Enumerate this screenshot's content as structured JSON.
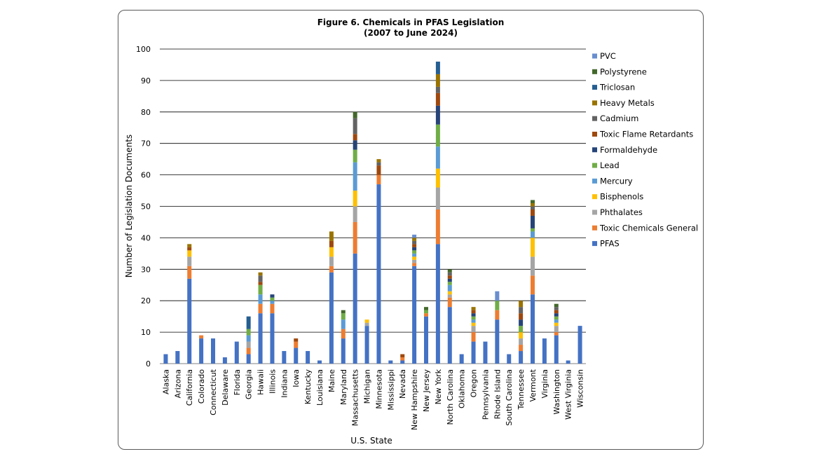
{
  "chart_data": {
    "type": "bar",
    "stacked": true,
    "title": "Figure 6. Chemicals in PFAS Legislation",
    "subtitle": "(2007 to June 2024)",
    "xlabel": "U.S. State",
    "ylabel": "Number of Legislation Documents",
    "ylim": [
      0,
      100
    ],
    "yticks": [
      0,
      10,
      20,
      30,
      40,
      50,
      60,
      70,
      80,
      90,
      100
    ],
    "grid": true,
    "legend_position": "right",
    "categories": [
      "Alaska",
      "Arizona",
      "California",
      "Colorado",
      "Connecticut",
      "Delaware",
      "Florida",
      "Georgia",
      "Hawaii",
      "Illinois",
      "Indiana",
      "Iowa",
      "Kentucky",
      "Louisiana",
      "Maine",
      "Maryland",
      "Massachusetts",
      "Michigan",
      "Minnesota",
      "Mississippi",
      "Nevada",
      "New Hampshire",
      "New Jersey",
      "New York",
      "North Carolina",
      "Oklahoma",
      "Oregon",
      "Pennsylvania",
      "Rhode Island",
      "South Carolina",
      "Tennessee",
      "Vermont",
      "Virginia",
      "Washington",
      "West Virginia",
      "Wisconsin"
    ],
    "series": [
      {
        "name": "PFAS",
        "color": "#4472C4",
        "values": [
          3,
          4,
          27,
          8,
          8,
          2,
          7,
          3,
          16,
          16,
          4,
          5,
          4,
          1,
          29,
          8,
          35,
          12,
          57,
          1,
          1,
          31,
          15,
          38,
          18,
          3,
          7,
          7,
          14,
          3,
          4,
          22,
          8,
          9,
          1,
          12
        ]
      },
      {
        "name": "Toxic Chemicals General",
        "color": "#ED7D31",
        "values": [
          0,
          0,
          4,
          1,
          0,
          0,
          0,
          2,
          3,
          3,
          0,
          2,
          0,
          0,
          2,
          3,
          10,
          0,
          3,
          0,
          1,
          1,
          1,
          11,
          3,
          0,
          3,
          0,
          3,
          0,
          2,
          6,
          0,
          1,
          0,
          0
        ]
      },
      {
        "name": "Phthalates",
        "color": "#A5A5A5",
        "values": [
          0,
          0,
          3,
          0,
          0,
          0,
          0,
          2,
          0,
          0,
          0,
          0,
          0,
          0,
          3,
          0,
          5,
          1,
          0,
          0,
          0,
          1,
          0,
          7,
          1,
          0,
          2,
          0,
          0,
          0,
          2,
          6,
          0,
          2,
          0,
          0
        ]
      },
      {
        "name": "Bisphenols",
        "color": "#FFC000",
        "values": [
          0,
          0,
          2,
          0,
          0,
          0,
          0,
          0,
          0,
          0,
          0,
          0,
          0,
          0,
          3,
          0,
          5,
          1,
          0,
          0,
          0,
          1,
          0,
          6,
          1,
          0,
          1,
          0,
          0,
          0,
          2,
          6,
          0,
          1,
          0,
          0
        ]
      },
      {
        "name": "Mercury",
        "color": "#5B9BD5",
        "values": [
          0,
          0,
          0,
          0,
          0,
          0,
          0,
          2,
          3,
          1,
          0,
          0,
          0,
          0,
          0,
          3,
          9,
          0,
          0,
          0,
          0,
          1,
          0,
          7,
          2,
          0,
          1,
          0,
          0,
          0,
          0,
          2,
          0,
          1,
          0,
          0
        ]
      },
      {
        "name": "Lead",
        "color": "#70AD47",
        "values": [
          0,
          0,
          0,
          0,
          0,
          0,
          0,
          2,
          3,
          1,
          0,
          0,
          0,
          0,
          0,
          2,
          4,
          0,
          0,
          0,
          0,
          1,
          1,
          7,
          1,
          0,
          1,
          0,
          3,
          0,
          2,
          1,
          0,
          1,
          0,
          0
        ]
      },
      {
        "name": "Formaldehyde",
        "color": "#264478",
        "values": [
          0,
          0,
          0,
          0,
          0,
          0,
          0,
          0,
          0,
          1,
          0,
          0,
          0,
          0,
          0,
          0,
          3,
          0,
          0,
          0,
          0,
          1,
          0,
          6,
          1,
          0,
          1,
          0,
          0,
          0,
          2,
          4,
          0,
          1,
          0,
          0
        ]
      },
      {
        "name": "Toxic Flame Retardants",
        "color": "#9E480E",
        "values": [
          0,
          0,
          1,
          0,
          0,
          0,
          0,
          0,
          1,
          0,
          0,
          1,
          0,
          0,
          2,
          0,
          2,
          0,
          3,
          0,
          1,
          1,
          0,
          4,
          1,
          0,
          1,
          0,
          0,
          0,
          2,
          2,
          0,
          1,
          0,
          0
        ]
      },
      {
        "name": "Cadmium",
        "color": "#636363",
        "values": [
          0,
          0,
          0,
          0,
          0,
          0,
          0,
          0,
          2,
          0,
          0,
          0,
          0,
          0,
          0,
          0,
          5,
          0,
          1,
          0,
          0,
          1,
          0,
          2,
          1,
          0,
          0,
          0,
          0,
          0,
          2,
          1,
          0,
          1,
          0,
          0
        ]
      },
      {
        "name": "Heavy Metals",
        "color": "#997300",
        "values": [
          0,
          0,
          1,
          0,
          0,
          0,
          0,
          0,
          1,
          0,
          0,
          0,
          0,
          0,
          3,
          0,
          0,
          0,
          1,
          0,
          0,
          1,
          0,
          4,
          0,
          0,
          1,
          0,
          0,
          0,
          2,
          1,
          0,
          0,
          0,
          0
        ]
      },
      {
        "name": "Triclosan",
        "color": "#255E91",
        "values": [
          0,
          0,
          0,
          0,
          0,
          0,
          0,
          4,
          0,
          0,
          0,
          0,
          0,
          0,
          0,
          0,
          0,
          0,
          0,
          0,
          0,
          0,
          0,
          4,
          0,
          0,
          0,
          0,
          0,
          0,
          0,
          0,
          0,
          0,
          0,
          0
        ]
      },
      {
        "name": "Polystyrene",
        "color": "#43682B",
        "values": [
          0,
          0,
          0,
          0,
          0,
          0,
          0,
          0,
          0,
          0,
          0,
          0,
          0,
          0,
          0,
          1,
          2,
          0,
          0,
          0,
          0,
          0,
          1,
          0,
          1,
          0,
          0,
          0,
          0,
          0,
          0,
          1,
          0,
          1,
          0,
          0
        ]
      },
      {
        "name": "PVC",
        "color": "#698ED0",
        "values": [
          0,
          0,
          0,
          0,
          0,
          0,
          0,
          0,
          0,
          0,
          0,
          0,
          0,
          0,
          0,
          0,
          0,
          0,
          0,
          0,
          0,
          1,
          0,
          0,
          0,
          0,
          0,
          0,
          3,
          0,
          0,
          0,
          0,
          0,
          0,
          0
        ]
      }
    ]
  }
}
